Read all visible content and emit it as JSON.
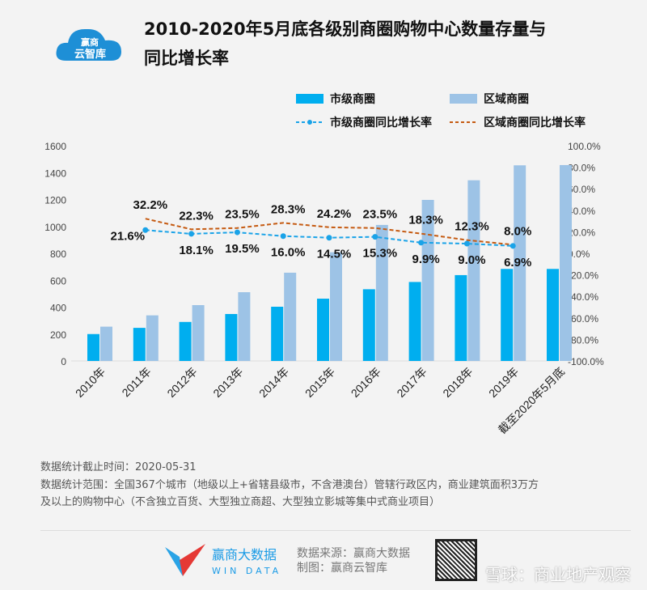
{
  "brand": {
    "logo_text": "赢商",
    "logo_sub": "云智库"
  },
  "chart_data": {
    "type": "bar+line",
    "title": "2010-2020年5月底各级别商圈购物中心数量存量与同比增长率",
    "title_line1": "2010-2020年5月底各级别商圈购物中心数量存量与",
    "title_line2": "同比增长率",
    "categories": [
      "2010年",
      "2011年",
      "2012年",
      "2013年",
      "2014年",
      "2015年",
      "2016年",
      "2017年",
      "2018年",
      "2019年",
      "截至2020年5月底"
    ],
    "left_axis": {
      "range": [
        0,
        1600
      ],
      "ticks": [
        "0",
        "200",
        "400",
        "600",
        "800",
        "1000",
        "1200",
        "1400",
        "1600"
      ]
    },
    "right_axis": {
      "range": [
        -100,
        100
      ],
      "ticks": [
        "-100.0%",
        "-80.0%",
        "-60.0%",
        "-40.0%",
        "-20.0%",
        "0.0%",
        "20.0%",
        "40.0%",
        "60.0%",
        "80.0%",
        "100.0%"
      ]
    },
    "grid": false,
    "legend_position": "top",
    "series": [
      {
        "name": "市级商圈",
        "type": "bar",
        "color": "#00aeef",
        "values": [
          200,
          246,
          290,
          349,
          403,
          463,
          533,
          587,
          638,
          684,
          684
        ]
      },
      {
        "name": "区域商圈",
        "type": "bar",
        "color": "#9dc3e6",
        "values": [
          255,
          339,
          415,
          511,
          656,
          808,
          1011,
          1197,
          1343,
          1454,
          1456
        ]
      },
      {
        "name": "市级商圈同比增长率",
        "type": "line",
        "color": "#1aa3e8",
        "values": [
          null,
          21.6,
          18.1,
          19.5,
          16.0,
          14.5,
          15.3,
          9.9,
          9.0,
          6.9,
          null
        ],
        "labels": [
          "",
          "21.6%",
          "18.1%",
          "19.5%",
          "16.0%",
          "14.5%",
          "15.3%",
          "9.9%",
          "9.0%",
          "6.9%",
          ""
        ]
      },
      {
        "name": "区域商圈同比增长率",
        "type": "line",
        "color": "#c55a11",
        "values": [
          null,
          32.2,
          22.3,
          23.5,
          28.3,
          24.2,
          23.5,
          18.3,
          12.3,
          8.0,
          null
        ],
        "labels": [
          "",
          "32.2%",
          "22.3%",
          "23.5%",
          "28.3%",
          "24.2%",
          "23.5%",
          "18.3%",
          "12.3%",
          "8.0%",
          ""
        ]
      }
    ]
  },
  "notes": {
    "line1": "数据统计截止时间：2020-05-31",
    "line2": "数据统计范围：全国367个城市（地级以上+省辖县级市，不含港澳台）管辖行政区内，商业建筑面积3万方",
    "line3": "及以上的购物中心（不含独立百货、大型独立商超、大型独立影城等集中式商业项目）"
  },
  "footer": {
    "brand_cn": "赢商大数据",
    "brand_en": "WIN DATA",
    "source": "数据来源：赢商大数据",
    "made_by": "制图：赢商云智库",
    "watermark": "雪球：商业地产观察"
  }
}
